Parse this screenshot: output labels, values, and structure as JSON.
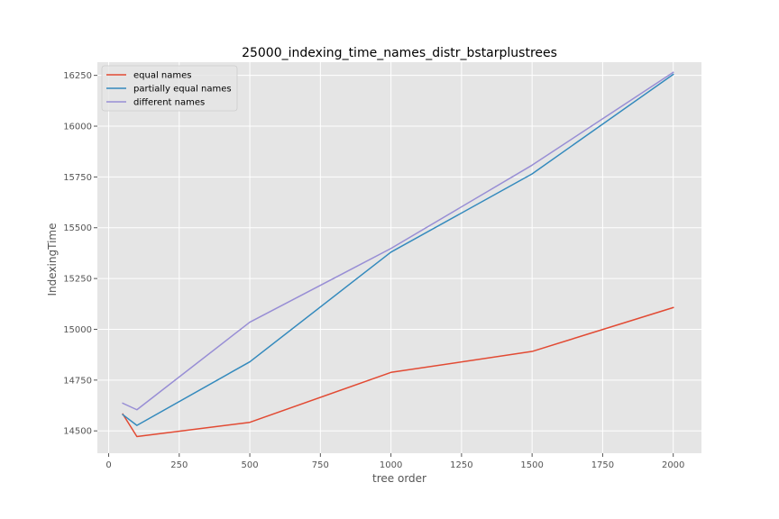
{
  "chart_data": {
    "type": "line",
    "title": "25000_indexing_time_names_distr_bstarplustrees",
    "xlabel": "tree order",
    "ylabel": "IndexingTime",
    "xlim": [
      -40,
      2100
    ],
    "ylim": [
      14390,
      16315
    ],
    "x_ticks": [
      0,
      250,
      500,
      750,
      1000,
      1250,
      1500,
      1750,
      2000
    ],
    "y_ticks": [
      14500,
      14750,
      15000,
      15250,
      15500,
      15750,
      16000,
      16250
    ],
    "grid": true,
    "legend_position": "top-left",
    "x": [
      50,
      100,
      500,
      1000,
      1500,
      2000
    ],
    "series": [
      {
        "name": "equal names",
        "color": "#E24A33",
        "values": [
          14583,
          14472,
          14542,
          14788,
          14891,
          15107
        ]
      },
      {
        "name": "partially equal names",
        "color": "#348ABD",
        "values": [
          14580,
          14527,
          14840,
          15380,
          15765,
          16255
        ]
      },
      {
        "name": "different names",
        "color": "#988ED5",
        "values": [
          14636,
          14604,
          15035,
          15398,
          15808,
          16265
        ]
      }
    ]
  }
}
